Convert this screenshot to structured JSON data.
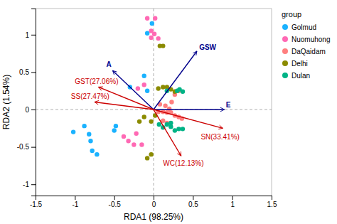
{
  "chart_data": {
    "type": "scatter",
    "xlabel": "RDA1 (98.25%)",
    "ylabel": "RDA2 (1.54%)",
    "xlim": [
      -1.5,
      1.5
    ],
    "ylim": [
      -1.15,
      1.35
    ],
    "xticks": [
      -1.5,
      -1,
      -0.5,
      0,
      0.5,
      1,
      1.5
    ],
    "yticks": [
      -1,
      -0.5,
      0,
      0.5,
      1
    ],
    "grid": false,
    "legend": "right",
    "legend_title": "group",
    "hlines": [
      0
    ],
    "vlines": [
      0
    ],
    "series": [
      {
        "name": "Golmud",
        "color": "#1AB2FF",
        "x": [
          -0.82,
          -0.88,
          -1.02,
          -0.8,
          -0.72,
          -0.78,
          -0.5,
          -0.48,
          -0.12,
          -0.08,
          -0.3,
          -0.02,
          -0.08
        ],
        "values": [
          -0.33,
          -0.22,
          -0.3,
          -0.42,
          -0.6,
          -0.55,
          -0.28,
          -0.22,
          0.45,
          0.25,
          0.3,
          1.15,
          1.02
        ]
      },
      {
        "name": "Nuomuhong",
        "color": "#FF69B4",
        "x": [
          -0.32,
          -0.25,
          -0.15,
          -0.38,
          -0.22,
          -0.2,
          -0.12,
          -0.03,
          0.01,
          -0.08,
          0.02,
          -0.03,
          0.06
        ],
        "values": [
          -0.42,
          -0.47,
          -0.47,
          -0.36,
          -0.32,
          0.28,
          0.33,
          1.05,
          1.01,
          1.22,
          1.22,
          0.96,
          0.95
        ]
      },
      {
        "name": "DaQaidam",
        "color": "#FF7F7F",
        "x": [
          0.12,
          0.17,
          0.22,
          0.27,
          0.32,
          0.36,
          0.2,
          0.15,
          0.23,
          0.27,
          0.32,
          0.12,
          0.17,
          0.06,
          0.08
        ],
        "values": [
          -0.03,
          -0.04,
          -0.04,
          -0.08,
          -0.1,
          -0.12,
          0.01,
          0.05,
          0.1,
          0.2,
          0.25,
          -0.15,
          -0.18,
          -0.03,
          0.07
        ]
      },
      {
        "name": "Delhi",
        "color": "#8B8B00",
        "x": [
          -0.18,
          -0.12,
          -0.03,
          0.02,
          0.06,
          0.12,
          0.17,
          0.22,
          0.27,
          0.12,
          -0.08,
          -0.03,
          0.08
        ],
        "values": [
          -0.16,
          -0.1,
          -0.16,
          -0.08,
          0.28,
          0.3,
          0.3,
          0.27,
          0.24,
          0.85,
          -0.65,
          -0.6,
          0.85
        ]
      },
      {
        "name": "Dulan",
        "color": "#00B386",
        "x": [
          0.07,
          0.12,
          0.22,
          0.27,
          0.32,
          0.37,
          0.17,
          0.22,
          0.3,
          0.33,
          0.37,
          0.17
        ],
        "values": [
          -0.2,
          -0.24,
          -0.23,
          -0.28,
          -0.26,
          -0.26,
          -0.2,
          -0.18,
          0.25,
          0.27,
          0.24,
          0.25
        ]
      }
    ],
    "annotations": [
      {
        "text": "A",
        "x": -0.6,
        "y": 0.57,
        "x_start": 0,
        "y_start": 0,
        "x_end": -0.52,
        "y_end": 0.52,
        "color": "#00008B"
      },
      {
        "text": "GSW",
        "x": 0.58,
        "y": 0.8,
        "x_start": 0,
        "y_start": 0,
        "x_end": 0.55,
        "y_end": 0.78,
        "color": "#00008B"
      },
      {
        "text": "E",
        "x": 0.92,
        "y": 0.03,
        "x_start": 0,
        "y_start": 0,
        "x_end": 0.9,
        "y_end": 0,
        "color": "#00008B"
      },
      {
        "text": "GST(27.06%)",
        "x": -1.0,
        "y": 0.34,
        "x_start": 0,
        "y_start": 0,
        "x_end": -0.7,
        "y_end": 0.3,
        "color": "#CC0000"
      },
      {
        "text": "SS(27.47%)",
        "x": -1.05,
        "y": 0.14,
        "x_start": 0,
        "y_start": 0,
        "x_end": -0.75,
        "y_end": 0.1,
        "color": "#CC0000"
      },
      {
        "text": "SN(33.41%)",
        "x": 0.6,
        "y": -0.33,
        "x_start": 0,
        "y_start": 0,
        "x_end": 0.88,
        "y_end": -0.25,
        "color": "#CC0000"
      },
      {
        "text": "WC(12.13%)",
        "x": 0.12,
        "y": -0.68,
        "x_start": 0,
        "y_start": 0,
        "x_end": 0.35,
        "y_end": -0.62,
        "color": "#CC0000"
      }
    ]
  }
}
